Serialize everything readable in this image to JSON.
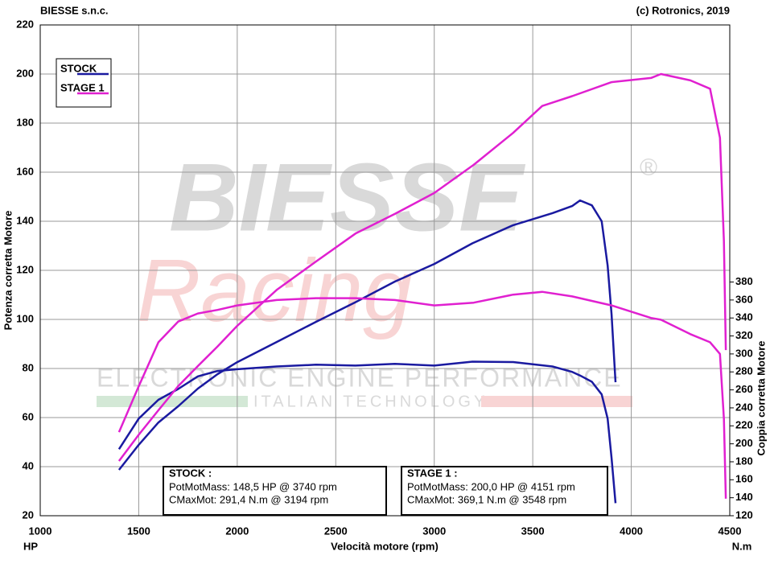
{
  "chart_data": {
    "type": "line",
    "header_left": "BIESSE s.n.c.",
    "header_right": "(c) Rotronics, 2019",
    "x_label": "Velocità motore (rpm)",
    "y_label": "Potenza corretta Motore",
    "y2_label": "Coppia corretta Motore",
    "y_unit": "HP",
    "y2_unit": "N.m",
    "watermark": {
      "brand": "BIESSE",
      "reg": "®",
      "script": "Racing",
      "line1": "ELECTRONIC ENGINE PERFORMANCE",
      "line2": "ITALIAN TECHNOLOGY"
    },
    "xlim": [
      1000,
      4500
    ],
    "xticks": [
      1000,
      1500,
      2000,
      2500,
      3000,
      3500,
      4000,
      4500
    ],
    "ylim": [
      20,
      220
    ],
    "yticks": [
      20,
      40,
      60,
      80,
      100,
      120,
      140,
      160,
      180,
      200,
      220
    ],
    "y2lim": [
      120,
      666
    ],
    "y2ticks": [
      120,
      140,
      160,
      180,
      200,
      220,
      240,
      260,
      280,
      300,
      320,
      340,
      360,
      380
    ],
    "grid": true,
    "series": [
      {
        "name": "STOCK",
        "color": "#1a1aa0",
        "x": [
          1400,
          1500,
          1600,
          1700,
          1800,
          1900,
          2000,
          2200,
          2400,
          2600,
          2800,
          3000,
          3194,
          3400,
          3600,
          3700,
          3740,
          3800,
          3850,
          3880,
          3900,
          3920
        ],
        "power": [
          38.7,
          48.9,
          58,
          64.6,
          71.8,
          77.7,
          82.6,
          90.8,
          99,
          107,
          115.4,
          122.6,
          131,
          138.4,
          143.3,
          146.2,
          148.5,
          146.5,
          140,
          122,
          102,
          74.4
        ],
        "torque": [
          194,
          228,
          249,
          261,
          275,
          281,
          283,
          286,
          288,
          287,
          289,
          287,
          291.4,
          291,
          286,
          280,
          276,
          269,
          255,
          228,
          184,
          134
        ]
      },
      {
        "name": "STAGE 1",
        "color": "#e020d0",
        "x": [
          1400,
          1500,
          1600,
          1700,
          1800,
          1900,
          2000,
          2200,
          2400,
          2600,
          2800,
          3000,
          3200,
          3400,
          3548,
          3700,
          3900,
          4100,
          4151,
          4300,
          4400,
          4450,
          4470,
          4480
        ],
        "power": [
          42.3,
          53,
          63,
          72.8,
          81,
          89,
          97.4,
          112,
          123.6,
          135,
          143,
          151.5,
          163,
          176,
          187,
          191,
          196.7,
          198.4,
          200,
          197.4,
          194,
          174,
          132,
          87.5
        ],
        "torque": [
          213,
          264,
          313,
          336,
          345,
          349,
          354,
          360,
          362,
          362,
          360,
          354,
          357,
          366,
          369.1,
          364,
          354,
          340,
          338,
          322,
          313,
          300,
          228,
          139
        ]
      }
    ],
    "info_boxes": [
      {
        "title": "STOCK :",
        "lines": [
          "PotMotMass: 148,5 HP @ 3740 rpm",
          "CMaxMot: 291,4 N.m @ 3194 rpm"
        ]
      },
      {
        "title": "STAGE 1 :",
        "lines": [
          "PotMotMass: 200,0 HP @ 4151 rpm",
          "CMaxMot: 369,1 N.m @ 3548 rpm"
        ]
      }
    ]
  }
}
